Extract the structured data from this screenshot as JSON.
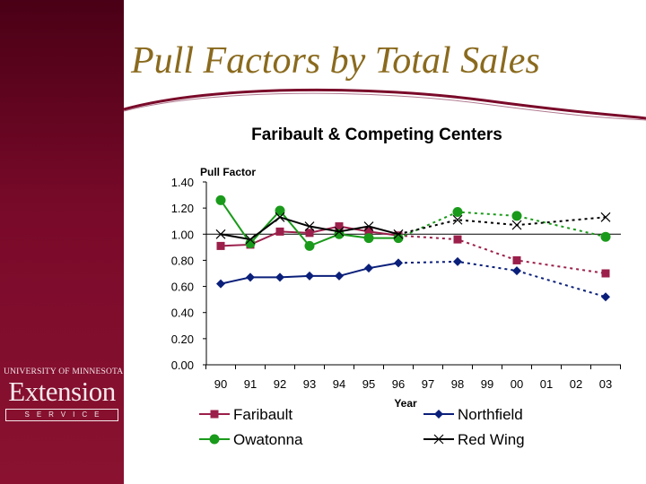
{
  "slide": {
    "title": "Pull Factors by Total Sales",
    "logo": {
      "line1": "UNIVERSITY OF MINNESOTA",
      "line2": "Extension",
      "line3": "SERVICE"
    }
  },
  "colors": {
    "sidebar": "#7a0a2a",
    "title": "#8a6a1e",
    "faribault": "#9b1f4a",
    "northfield": "#0a1f7a",
    "owatonna": "#1a9a1a",
    "redwing": "#000000"
  },
  "chart_data": {
    "type": "line",
    "title": "Faribault & Competing Centers",
    "ylabel": "Pull Factor",
    "xlabel": "Year",
    "ylim": [
      0,
      1.4
    ],
    "yticks": [
      "0.00",
      "0.20",
      "0.40",
      "0.60",
      "0.80",
      "1.00",
      "1.20",
      "1.40"
    ],
    "categories": [
      "90",
      "91",
      "92",
      "93",
      "94",
      "95",
      "96",
      "97",
      "98",
      "99",
      "00",
      "01",
      "02",
      "03"
    ],
    "reference_line": 1.0,
    "solid_through": "96",
    "legend_position": "bottom",
    "series": [
      {
        "name": "Faribault",
        "marker": "square",
        "color": "#9b1f4a",
        "values": [
          0.91,
          0.92,
          1.02,
          1.01,
          1.06,
          1.02,
          0.99,
          null,
          0.96,
          null,
          0.8,
          null,
          null,
          0.7
        ]
      },
      {
        "name": "Northfield",
        "marker": "diamond",
        "color": "#0a1f7a",
        "values": [
          0.62,
          0.67,
          0.67,
          0.68,
          0.68,
          0.74,
          0.78,
          null,
          0.79,
          null,
          0.72,
          null,
          null,
          0.52
        ]
      },
      {
        "name": "Owatonna",
        "marker": "circle",
        "color": "#1a9a1a",
        "values": [
          1.26,
          0.93,
          1.18,
          0.91,
          1.0,
          0.97,
          0.97,
          null,
          1.17,
          null,
          1.14,
          null,
          null,
          0.98
        ]
      },
      {
        "name": "Red Wing",
        "marker": "x",
        "color": "#000000",
        "values": [
          1.0,
          0.96,
          1.13,
          1.06,
          1.02,
          1.06,
          1.0,
          null,
          1.11,
          null,
          1.07,
          null,
          null,
          1.13
        ]
      }
    ]
  }
}
